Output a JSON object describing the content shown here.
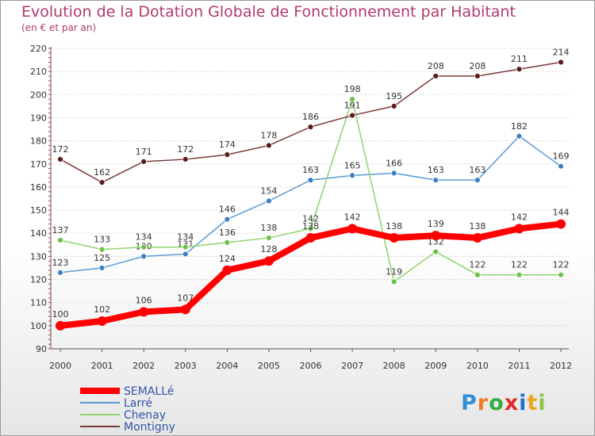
{
  "title": "Evolution de la Dotation Globale de Fonctionnement par Habitant",
  "subtitle": "(en € et par an)",
  "logo": {
    "letters": [
      "P",
      "r",
      "o",
      "x",
      "i",
      "t",
      "i"
    ],
    "colors": [
      "#2f8fd8",
      "#f07d1f",
      "#2fae3c",
      "#e02b2b",
      "#1f6fd1",
      "#f0a51f",
      "#8bc34a"
    ]
  },
  "chart_data": {
    "type": "line",
    "title": "Evolution de la Dotation Globale de Fonctionnement par Habitant",
    "subtitle": "(en € et par an)",
    "xlabel": "",
    "ylabel": "",
    "x": [
      "2000",
      "2001",
      "2002",
      "2003",
      "2004",
      "2005",
      "2006",
      "2007",
      "2008",
      "2009",
      "2010",
      "2011",
      "2012"
    ],
    "ylim": [
      90,
      220
    ],
    "yticks": [
      90,
      100,
      110,
      120,
      130,
      140,
      150,
      160,
      170,
      180,
      190,
      200,
      210,
      220
    ],
    "grid": "horizontal",
    "legend_position": "bottom-left",
    "series": [
      {
        "name": "SEMALLé",
        "color": "#ff0000",
        "emphasis": true,
        "values": [
          100,
          102,
          106,
          107,
          124,
          128,
          138,
          142,
          138,
          139,
          138,
          142,
          144
        ],
        "labels": [
          "100",
          "102",
          "106",
          "107",
          "124",
          "128",
          "138",
          "142",
          "138",
          "139",
          "138",
          "142",
          "144"
        ]
      },
      {
        "name": "Larré",
        "color": "#5b9bd5",
        "marker": "#3d7fc1",
        "values": [
          123,
          125,
          130,
          131,
          146,
          154,
          163,
          165,
          166,
          163,
          163,
          182,
          169
        ],
        "labels": [
          "123",
          "125",
          "130",
          "131",
          "146",
          "154",
          "163",
          "165",
          "166",
          "163",
          "163",
          "182",
          "169"
        ]
      },
      {
        "name": "Chenay",
        "color": "#8fd36a",
        "marker": "#6cc04a",
        "values": [
          137,
          133,
          134,
          134,
          136,
          138,
          142,
          198,
          119,
          132,
          122,
          122,
          122
        ],
        "labels": [
          "137",
          "133",
          "134",
          "134",
          "136",
          "138",
          "142",
          "198",
          "119",
          "132",
          "122",
          "122",
          "122"
        ]
      },
      {
        "name": "Montigny",
        "color": "#7a3b3b",
        "marker": "#5c1a1a",
        "values": [
          172,
          162,
          171,
          172,
          174,
          178,
          186,
          191,
          195,
          208,
          208,
          211,
          214
        ],
        "labels": [
          "172",
          "162",
          "171",
          "172",
          "174",
          "178",
          "186",
          "191",
          "195",
          "208",
          "208",
          "211",
          "214"
        ]
      }
    ]
  }
}
